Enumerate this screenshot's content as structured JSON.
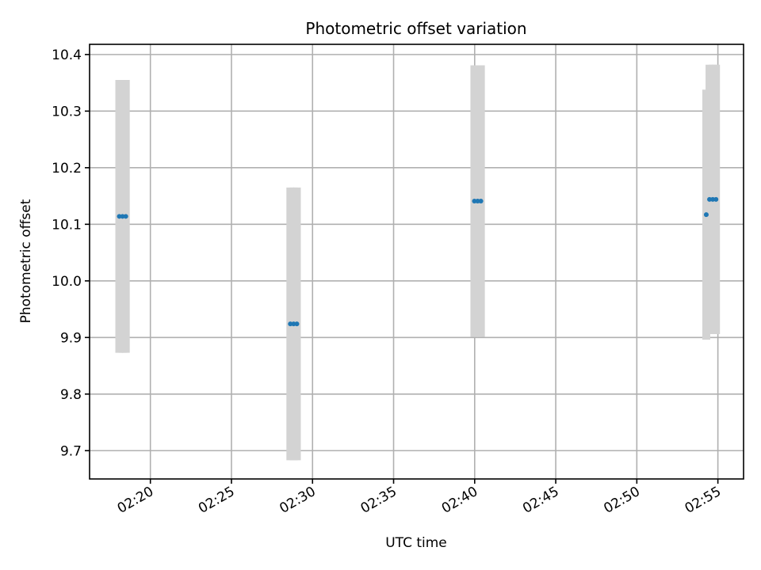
{
  "chart_data": {
    "type": "scatter",
    "title": "Photometric offset variation",
    "xlabel": "UTC time",
    "ylabel": "Photometric offset",
    "x_unit": "UTC time (hh:mm)",
    "xlim": [
      "02:16:15",
      "02:56:35"
    ],
    "ylim": [
      9.65,
      10.418
    ],
    "grid": true,
    "x_ticks": [
      "02:20",
      "02:25",
      "02:30",
      "02:35",
      "02:40",
      "02:45",
      "02:50",
      "02:55"
    ],
    "y_ticks": [
      "9.7",
      "9.8",
      "9.9",
      "10.0",
      "10.1",
      "10.2",
      "10.3",
      "10.4"
    ],
    "colors": {
      "points": "#1f77b4",
      "error_bars": "#d3d3d3"
    },
    "series": [
      {
        "points": [
          {
            "x": "02:18:05",
            "y": 10.114,
            "err": 0.241
          },
          {
            "x": "02:18:17",
            "y": 10.114,
            "err": 0.241
          },
          {
            "x": "02:18:29",
            "y": 10.114,
            "err": 0.241
          },
          {
            "x": "02:28:38",
            "y": 9.924,
            "err": 0.241
          },
          {
            "x": "02:28:50",
            "y": 9.924,
            "err": 0.241
          },
          {
            "x": "02:29:02",
            "y": 9.924,
            "err": 0.241
          },
          {
            "x": "02:39:59",
            "y": 10.141,
            "err": 0.24
          },
          {
            "x": "02:40:11",
            "y": 10.141,
            "err": 0.24
          },
          {
            "x": "02:40:23",
            "y": 10.141,
            "err": 0.24
          },
          {
            "x": "02:54:17",
            "y": 10.117,
            "err": 0.221
          },
          {
            "x": "02:54:29",
            "y": 10.144,
            "err": 0.238
          },
          {
            "x": "02:54:41",
            "y": 10.144,
            "err": 0.238
          },
          {
            "x": "02:54:53",
            "y": 10.144,
            "err": 0.238
          }
        ]
      }
    ]
  }
}
